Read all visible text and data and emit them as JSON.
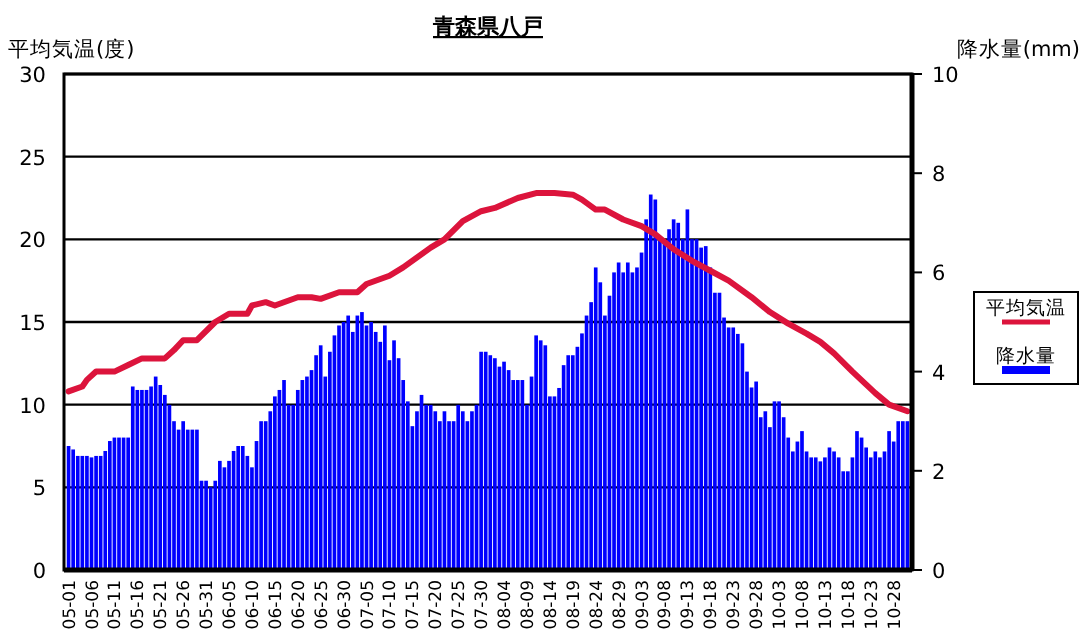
{
  "chart_data": {
    "type": "bar",
    "title": "青森県八戸",
    "ylabel": "平均気温(度)",
    "y2label": "降水量(mm)",
    "x": [
      "--05-01",
      "--05-02",
      "--05-03",
      "--05-04",
      "--05-05",
      "--05-06",
      "--05-07",
      "--05-08",
      "--05-09",
      "--05-10",
      "--05-11",
      "--05-12",
      "--05-13",
      "--05-14",
      "--05-15",
      "--05-16",
      "--05-17",
      "--05-18",
      "--05-19",
      "--05-20",
      "--05-21",
      "--05-22",
      "--05-23",
      "--05-24",
      "--05-25",
      "--05-26",
      "--05-27",
      "--05-28",
      "--05-29",
      "--05-30",
      "--05-31",
      "--06-01",
      "--06-02",
      "--06-03",
      "--06-04",
      "--06-05",
      "--06-06",
      "--06-07",
      "--06-08",
      "--06-09",
      "--06-10",
      "--06-11",
      "--06-12",
      "--06-13",
      "--06-14",
      "--06-15",
      "--06-16",
      "--06-17",
      "--06-18",
      "--06-19",
      "--06-20",
      "--06-21",
      "--06-22",
      "--06-23",
      "--06-24",
      "--06-25",
      "--06-26",
      "--06-27",
      "--06-28",
      "--06-29",
      "--06-30",
      "--07-01",
      "--07-02",
      "--07-03",
      "--07-04",
      "--07-05",
      "--07-06",
      "--07-07",
      "--07-08",
      "--07-09",
      "--07-10",
      "--07-11",
      "--07-12",
      "--07-13",
      "--07-14",
      "--07-15",
      "--07-16",
      "--07-17",
      "--07-18",
      "--07-19",
      "--07-20",
      "--07-21",
      "--07-22",
      "--07-23",
      "--07-24",
      "--07-25",
      "--07-26",
      "--07-27",
      "--07-28",
      "--07-29",
      "--07-30",
      "--07-31",
      "--08-01",
      "--08-02",
      "--08-03",
      "--08-04",
      "--08-05",
      "--08-06",
      "--08-07",
      "--08-08",
      "--08-09",
      "--08-10",
      "--08-11",
      "--08-12",
      "--08-13",
      "--08-14",
      "--08-15",
      "--08-16",
      "--08-17",
      "--08-18",
      "--08-19",
      "--08-20",
      "--08-21",
      "--08-22",
      "--08-23",
      "--08-24",
      "--08-25",
      "--08-26",
      "--08-27",
      "--08-28",
      "--08-29",
      "--08-30",
      "--08-31",
      "--09-01",
      "--09-02",
      "--09-03",
      "--09-04",
      "--09-05",
      "--09-06",
      "--09-07",
      "--09-08",
      "--09-09",
      "--09-10",
      "--09-11",
      "--09-12",
      "--09-13",
      "--09-14",
      "--09-15",
      "--09-16",
      "--09-17",
      "--09-18",
      "--09-19",
      "--09-20",
      "--09-21",
      "--09-22",
      "--09-23",
      "--09-24",
      "--09-25",
      "--09-26",
      "--09-27",
      "--09-28",
      "--09-29",
      "--09-30",
      "--10-01",
      "--10-02",
      "--10-03",
      "--10-04",
      "--10-05",
      "--10-06",
      "--10-07",
      "--10-08",
      "--10-09",
      "--10-10",
      "--10-11",
      "--10-12",
      "--10-13",
      "--10-14",
      "--10-15",
      "--10-16",
      "--10-17",
      "--10-18",
      "--10-19",
      "--10-20",
      "--10-21",
      "--10-22",
      "--10-23",
      "--10-24",
      "--10-25",
      "--10-26",
      "--10-27",
      "--10-28",
      "--10-29",
      "--10-30",
      "--10-31"
    ],
    "series": [
      {
        "name": "平均気温",
        "type": "line",
        "color": "#dc143c",
        "x": [
          "--05-01",
          "--05-04",
          "--05-05",
          "--05-07",
          "--05-11",
          "--05-14",
          "--05-17",
          "--05-22",
          "--05-24",
          "--05-26",
          "--05-29",
          "--06-02",
          "--06-05",
          "--06-09",
          "--06-10",
          "--06-13",
          "--06-15",
          "--06-20",
          "--06-23",
          "--06-25",
          "--06-29",
          "--07-03",
          "--07-05",
          "--07-10",
          "--07-13",
          "--07-19",
          "--07-22",
          "--07-26",
          "--07-30",
          "--08-02",
          "--08-07",
          "--08-11",
          "--08-15",
          "--08-19",
          "--08-21",
          "--08-24",
          "--08-26",
          "--08-30",
          "--09-03",
          "--09-06",
          "--09-10",
          "--09-14",
          "--09-18",
          "--09-22",
          "--09-27",
          "--10-01",
          "--10-05",
          "--10-09",
          "--10-12",
          "--10-15",
          "--10-19",
          "--10-24",
          "--10-27",
          "--10-31"
        ],
        "values": [
          10.8,
          11.1,
          11.5,
          12.0,
          12.0,
          12.4,
          12.8,
          12.8,
          13.3,
          13.9,
          13.9,
          15.0,
          15.5,
          15.5,
          16.0,
          16.2,
          16.0,
          16.5,
          16.5,
          16.4,
          16.8,
          16.8,
          17.3,
          17.8,
          18.3,
          19.5,
          20.0,
          21.1,
          21.7,
          21.9,
          22.5,
          22.8,
          22.8,
          22.7,
          22.4,
          21.8,
          21.8,
          21.2,
          20.8,
          20.3,
          19.4,
          18.7,
          18.1,
          17.5,
          16.5,
          15.6,
          14.9,
          14.3,
          13.8,
          13.1,
          12.0,
          10.7,
          10.0,
          9.6
        ]
      },
      {
        "name": "降水量",
        "axis": "y2",
        "color": "#0000ff",
        "values": [
          2.5,
          2.43,
          2.3,
          2.3,
          2.3,
          2.27,
          2.3,
          2.3,
          2.4,
          2.6,
          2.67,
          2.67,
          2.67,
          2.67,
          3.7,
          3.63,
          3.63,
          3.63,
          3.7,
          3.9,
          3.73,
          3.53,
          3.33,
          3.0,
          2.83,
          3.0,
          2.83,
          2.83,
          2.83,
          1.8,
          1.8,
          1.67,
          1.8,
          2.2,
          2.07,
          2.2,
          2.4,
          2.5,
          2.5,
          2.3,
          2.07,
          2.6,
          3.0,
          3.0,
          3.2,
          3.5,
          3.63,
          3.83,
          3.33,
          3.33,
          3.63,
          3.83,
          3.9,
          4.03,
          4.33,
          4.53,
          3.9,
          4.4,
          4.73,
          4.93,
          5.0,
          5.13,
          4.8,
          5.13,
          5.2,
          4.93,
          5.0,
          4.8,
          4.6,
          4.93,
          4.23,
          4.63,
          4.27,
          3.83,
          3.4,
          2.9,
          3.2,
          3.53,
          3.33,
          3.33,
          3.2,
          3.0,
          3.2,
          3.0,
          3.0,
          3.33,
          3.2,
          3.0,
          3.2,
          3.33,
          4.4,
          4.4,
          4.33,
          4.27,
          4.1,
          4.2,
          4.03,
          3.83,
          3.83,
          3.83,
          3.33,
          3.9,
          4.73,
          4.63,
          4.53,
          3.5,
          3.5,
          3.67,
          4.13,
          4.33,
          4.33,
          4.5,
          4.77,
          5.13,
          5.4,
          6.1,
          5.8,
          5.13,
          5.53,
          6.0,
          6.2,
          6.0,
          6.2,
          6.0,
          6.1,
          6.4,
          7.07,
          7.57,
          7.47,
          6.67,
          6.67,
          6.87,
          7.07,
          7.0,
          6.67,
          7.27,
          6.67,
          6.67,
          6.5,
          6.53,
          6.1,
          5.59,
          5.59,
          5.09,
          4.89,
          4.89,
          4.76,
          4.57,
          4.0,
          3.68,
          3.8,
          3.08,
          3.2,
          2.88,
          3.4,
          3.4,
          3.08,
          2.67,
          2.39,
          2.59,
          2.8,
          2.39,
          2.27,
          2.27,
          2.19,
          2.27,
          2.47,
          2.39,
          2.27,
          1.99,
          1.99,
          2.27,
          2.8,
          2.67,
          2.47,
          2.27,
          2.39,
          2.27,
          2.39,
          2.8,
          2.59,
          3.0,
          3.0,
          3.0
        ]
      }
    ],
    "xlim": [
      "--04-30",
      "--11-01"
    ],
    "xticks": [
      {
        "value": "--05-01",
        "label": "05-01"
      },
      {
        "value": "--05-06",
        "label": "05-06"
      },
      {
        "value": "--05-11",
        "label": "05-11"
      },
      {
        "value": "--05-16",
        "label": "05-16"
      },
      {
        "value": "--05-21",
        "label": "05-21"
      },
      {
        "value": "--05-26",
        "label": "05-26"
      },
      {
        "value": "--05-31",
        "label": "05-31"
      },
      {
        "value": "--06-05",
        "label": "06-05"
      },
      {
        "value": "--06-10",
        "label": "06-10"
      },
      {
        "value": "--06-15",
        "label": "06-15"
      },
      {
        "value": "--06-20",
        "label": "06-20"
      },
      {
        "value": "--06-25",
        "label": "06-25"
      },
      {
        "value": "--06-30",
        "label": "06-30"
      },
      {
        "value": "--07-05",
        "label": "07-05"
      },
      {
        "value": "--07-10",
        "label": "07-10"
      },
      {
        "value": "--07-15",
        "label": "07-15"
      },
      {
        "value": "--07-20",
        "label": "07-20"
      },
      {
        "value": "--07-25",
        "label": "07-25"
      },
      {
        "value": "--07-30",
        "label": "07-30"
      },
      {
        "value": "--08-04",
        "label": "08-04"
      },
      {
        "value": "--08-09",
        "label": "08-09"
      },
      {
        "value": "--08-14",
        "label": "08-14"
      },
      {
        "value": "--08-19",
        "label": "08-19"
      },
      {
        "value": "--08-24",
        "label": "08-24"
      },
      {
        "value": "--08-29",
        "label": "08-29"
      },
      {
        "value": "--09-03",
        "label": "09-03"
      },
      {
        "value": "--09-08",
        "label": "09-08"
      },
      {
        "value": "--09-13",
        "label": "09-13"
      },
      {
        "value": "--09-18",
        "label": "09-18"
      },
      {
        "value": "--09-23",
        "label": "09-23"
      },
      {
        "value": "--09-28",
        "label": "09-28"
      },
      {
        "value": "--10-03",
        "label": "10-03"
      },
      {
        "value": "--10-08",
        "label": "10-08"
      },
      {
        "value": "--10-13",
        "label": "10-13"
      },
      {
        "value": "--10-18",
        "label": "10-18"
      },
      {
        "value": "--10-23",
        "label": "10-23"
      },
      {
        "value": "--10-28",
        "label": "10-28"
      }
    ],
    "ylim": [
      0,
      30
    ],
    "yticks": [
      0,
      5,
      10,
      15,
      20,
      25,
      30
    ],
    "y2lim": [
      0,
      10
    ],
    "y2ticks": [
      0,
      2,
      4,
      6,
      8,
      10
    ],
    "grid": "y",
    "legend": "right"
  }
}
